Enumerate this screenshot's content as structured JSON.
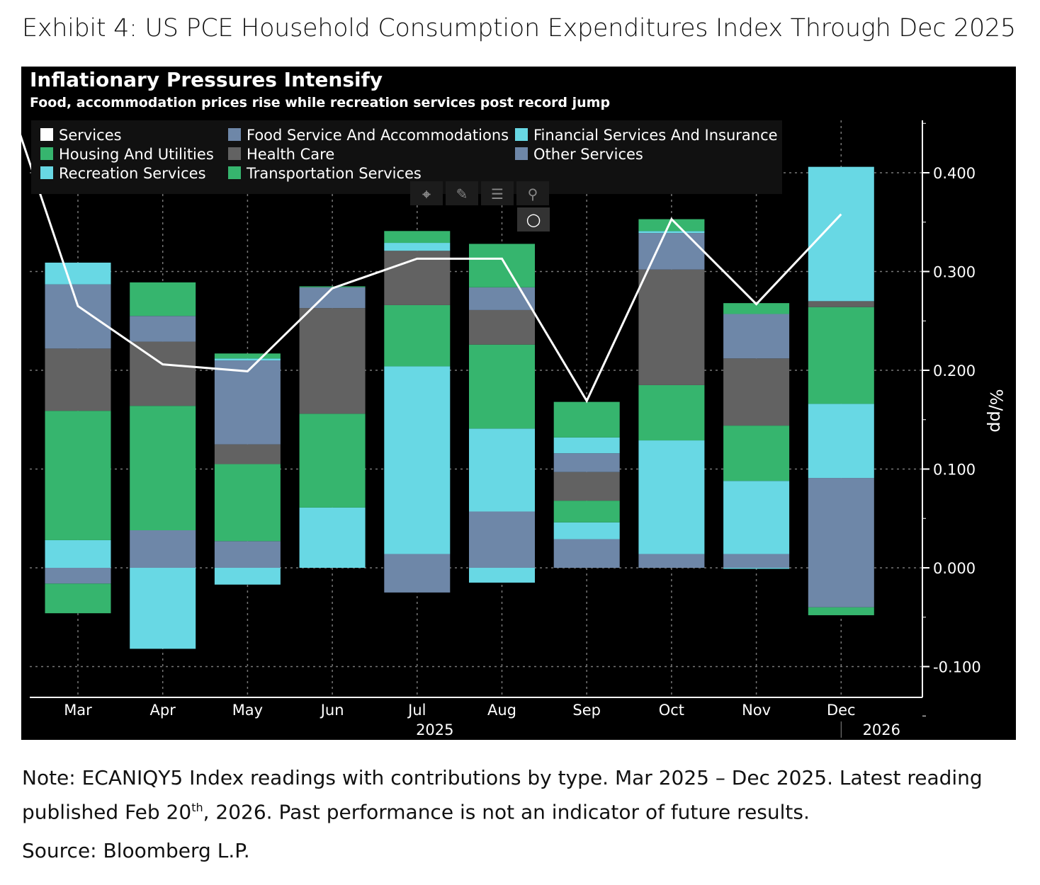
{
  "exhibit_title": "Exhibit 4: US PCE Household Consumption Expenditures Index Through Dec 2025",
  "note_part1": "Note: ECANIQY5 Index readings with contributions by type. Mar 2025 – Dec 2025. Latest reading published Feb 20",
  "note_sup": "th",
  "note_part2": ", 2026. Past performance is not an indicator of future results.",
  "source": "Source: Bloomberg L.P.",
  "toolbar_icons": [
    "crosshair-icon",
    "pen-icon",
    "list-icon",
    "zoom-icon",
    "circle-icon"
  ],
  "chart_data": {
    "type": "bar",
    "stacked": true,
    "title": "Inflationary Pressures Intensify",
    "subtitle": "Food, accommodation prices rise while recreation services post record jump",
    "ylabel": "%/pp",
    "ylim": [
      -0.13,
      0.45
    ],
    "yticks": [
      "0.400",
      "0.300",
      "0.200",
      "0.100",
      "0.000",
      "-0.100"
    ],
    "ytick_values": [
      0.4,
      0.3,
      0.2,
      0.1,
      0,
      -0.1
    ],
    "categories": [
      "Mar",
      "Apr",
      "May",
      "Jun",
      "Jul",
      "Aug",
      "Sep",
      "Oct",
      "Nov",
      "Dec"
    ],
    "year_labels": [
      {
        "label": "2025",
        "at": "Jul"
      },
      {
        "label": "2026",
        "at": "Dec"
      }
    ],
    "grid": true,
    "legend_placement": "top-left",
    "legend": [
      "Services",
      "Housing And Utilities",
      "Recreation Services",
      "Food Service And Accommodations",
      "Health Care",
      "Transportation Services",
      "Financial Services And Insurance",
      "Other Services"
    ],
    "line": {
      "name": "Services",
      "color": "#ffffff",
      "lead_in_value": 0.52,
      "values": [
        0.265,
        0.206,
        0.199,
        0.283,
        0.313,
        0.313,
        0.169,
        0.353,
        0.267,
        0.358
      ]
    },
    "series": [
      {
        "name": "Other Services",
        "color": "#6e87a8",
        "values": [
          -0.016,
          0.038,
          0.027,
          0,
          0.014,
          0.057,
          0.029,
          0.014,
          0.014,
          0.091
        ]
      },
      {
        "name": "Financial Services And Insurance",
        "color": "#68d8e4",
        "values": [
          0.028,
          0,
          -0.017,
          0.061,
          0.19,
          0.084,
          0.017,
          0.115,
          0.074,
          0.075
        ]
      },
      {
        "name": "Transportation Services",
        "color": "#36b56e",
        "values": [
          0.131,
          0.126,
          0.078,
          0.095,
          0.062,
          0.085,
          0.022,
          0.056,
          0.056,
          0.098
        ]
      },
      {
        "name": "Health Care",
        "color": "#626262",
        "values": [
          0.063,
          0.065,
          0.02,
          0.107,
          0.055,
          0.035,
          0.029,
          0.117,
          0.068,
          0.006
        ]
      },
      {
        "name": "Food Service And Accommodations",
        "color": "#6e87a8",
        "values": [
          0.065,
          0.026,
          0.085,
          0.021,
          -0.025,
          0.023,
          0.019,
          0.037,
          0.045,
          -0.04
        ]
      },
      {
        "name": "Recreation Services",
        "color": "#68d8e4",
        "values": [
          0.022,
          -0.082,
          0.002,
          0,
          0.008,
          -0.015,
          0.016,
          0.002,
          -0.001,
          0.136
        ]
      },
      {
        "name": "Housing And Utilities",
        "color": "#36b56e",
        "values": [
          -0.03,
          0.034,
          0.005,
          0.001,
          0.012,
          0.044,
          0.036,
          0.012,
          0.011,
          -0.008
        ]
      }
    ]
  }
}
